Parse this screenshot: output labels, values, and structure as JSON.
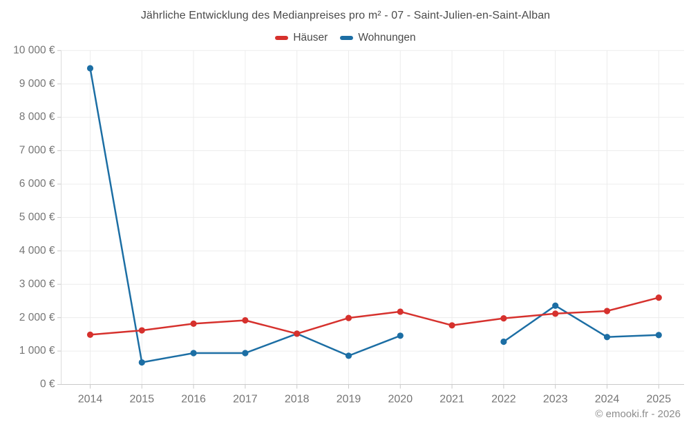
{
  "header": {
    "title": "Jährliche Entwicklung des Medianpreises pro m² - 07 - Saint-Julien-en-Saint-Alban"
  },
  "legend": {
    "items": [
      {
        "id": "haeuser",
        "label": "Häuser",
        "color": "#d6312d"
      },
      {
        "id": "wohnungen",
        "label": "Wohnungen",
        "color": "#1c6ea4"
      }
    ]
  },
  "footer": {
    "copyright": "© emooki.fr - 2026"
  },
  "colors": {
    "grid": "#ececec",
    "axis_line": "#c9c9c9",
    "left_axis_line": "#dcdcdc",
    "tick": "#c9c9c9",
    "tick_label": "#757575",
    "title_text": "#4a4a4a",
    "footer_text": "#8c8c8c"
  },
  "chart_data": {
    "type": "line",
    "title": "Jährliche Entwicklung des Medianpreises pro m² - 07 - Saint-Julien-en-Saint-Alban",
    "xlabel": "",
    "ylabel": "",
    "categories": [
      "2014",
      "2015",
      "2016",
      "2017",
      "2018",
      "2019",
      "2020",
      "2021",
      "2022",
      "2023",
      "2024",
      "2025"
    ],
    "series": [
      {
        "name": "Häuser",
        "color": "#d6312d",
        "values": [
          1490,
          1620,
          1820,
          1920,
          1520,
          1990,
          2180,
          1770,
          1980,
          2120,
          2200,
          2600
        ]
      },
      {
        "name": "Wohnungen",
        "color": "#1c6ea4",
        "values": [
          9470,
          660,
          940,
          940,
          1520,
          860,
          1460,
          null,
          1280,
          2360,
          1420,
          1480
        ]
      }
    ],
    "ylim": [
      0,
      10000
    ],
    "ytick_step": 1000,
    "ytick_labels": [
      "0 €",
      "1 000 €",
      "2 000 €",
      "3 000 €",
      "4 000 €",
      "5 000 €",
      "6 000 €",
      "7 000 €",
      "8 000 €",
      "9 000 €",
      "10 000 €"
    ],
    "grid": true,
    "legend_position": "top",
    "value_unit": "€ / m²"
  }
}
